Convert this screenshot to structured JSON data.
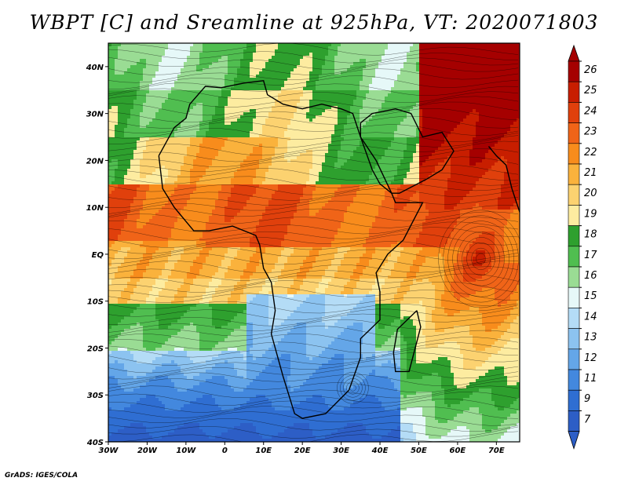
{
  "title": "WBPT [C] and Sreamline at 925hPa, VT: 2020071803",
  "credit": "GrADS: IGES/COLA",
  "map": {
    "lon_ticks": [
      "30W",
      "20W",
      "10W",
      "0",
      "10E",
      "20E",
      "30E",
      "40E",
      "50E",
      "60E",
      "70E"
    ],
    "lat_ticks": [
      "40N",
      "30N",
      "20N",
      "10N",
      "EQ",
      "10S",
      "20S",
      "30S",
      "40S"
    ]
  },
  "colorbar": {
    "labels": [
      "26",
      "25",
      "24",
      "23",
      "22",
      "21",
      "20",
      "19",
      "18",
      "17",
      "16",
      "15",
      "14",
      "13",
      "12",
      "11",
      "9",
      "7"
    ],
    "colors": [
      "#a50000",
      "#c81e00",
      "#e0400c",
      "#f06418",
      "#f88c1c",
      "#fab23c",
      "#fcd270",
      "#fdeca0",
      "#2ea02e",
      "#50be50",
      "#9adc94",
      "#e6f8f8",
      "#b4dcf6",
      "#8cc3f0",
      "#64a6e8",
      "#4388de",
      "#2f6ed2",
      "#2d5ec6"
    ]
  }
}
